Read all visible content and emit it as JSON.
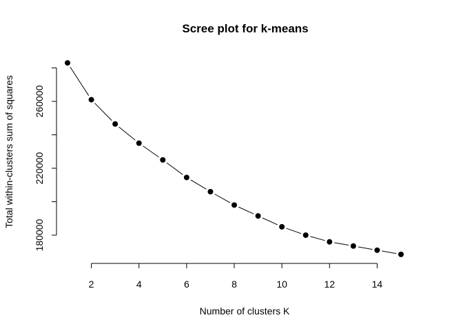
{
  "chart_data": {
    "type": "line",
    "title": "Scree plot for k-means",
    "xlabel": "Number of clusters K",
    "ylabel": "Total within-clusters sum of squares",
    "x": [
      1,
      2,
      3,
      4,
      5,
      6,
      7,
      8,
      9,
      10,
      11,
      12,
      13,
      14,
      15
    ],
    "series": [
      {
        "values": [
          283000,
          261000,
          246500,
          235000,
          225000,
          214500,
          206000,
          198000,
          191500,
          185000,
          180000,
          176000,
          173500,
          171000,
          168500
        ]
      }
    ],
    "xticks": [
      2,
      4,
      6,
      8,
      10,
      12,
      14
    ],
    "yticks": [
      180000,
      220000,
      260000
    ],
    "xticks_minor": [
      2,
      4,
      6,
      8,
      10,
      12,
      14
    ],
    "yticks_all": [
      180000,
      200000,
      220000,
      240000,
      260000,
      280000
    ],
    "xlim": [
      0.5,
      15.5
    ],
    "ylim": [
      165000,
      286000
    ],
    "marker": "filled-circle",
    "line_style": "dashed-between-points",
    "grid": false,
    "colors": {
      "line": "#000000",
      "marker": "#000000"
    }
  }
}
